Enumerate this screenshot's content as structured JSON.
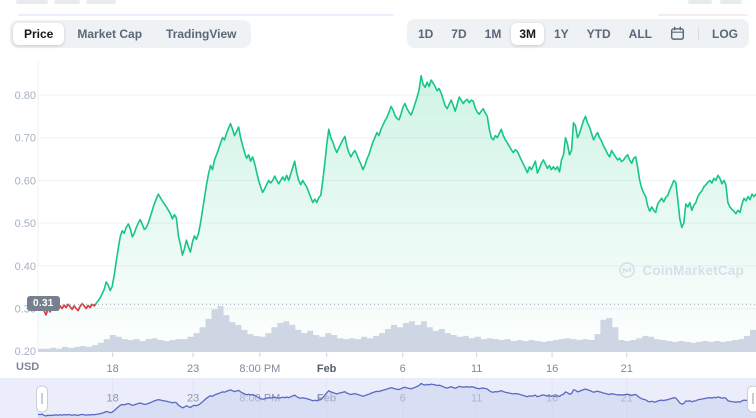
{
  "toolbar": {
    "chart_type_tabs": [
      {
        "label": "Price",
        "active": true
      },
      {
        "label": "Market Cap",
        "active": false
      },
      {
        "label": "TradingView",
        "active": false
      }
    ],
    "range_buttons": [
      {
        "label": "1D",
        "active": false
      },
      {
        "label": "7D",
        "active": false
      },
      {
        "label": "1M",
        "active": false
      },
      {
        "label": "3M",
        "active": true
      },
      {
        "label": "1Y",
        "active": false
      },
      {
        "label": "YTD",
        "active": false
      },
      {
        "label": "ALL",
        "active": false
      }
    ],
    "calendar_icon": "calendar-icon",
    "log_label": "LOG"
  },
  "chart_data": {
    "type": "line",
    "currency_label": "USD",
    "baseline_price": "0.31",
    "watermark": "CoinMarketCap",
    "legend_position": "none",
    "grid": true,
    "ylim": [
      0.175,
      0.88
    ],
    "y_ticks": [
      "0.80",
      "0.70",
      "0.60",
      "0.50",
      "0.40",
      "0.30",
      "0.20"
    ],
    "x_ticks": [
      {
        "label": "18",
        "t": 0.104,
        "bold": false
      },
      {
        "label": "23",
        "t": 0.216,
        "bold": false
      },
      {
        "label": "8:00 PM",
        "t": 0.309,
        "bold": false
      },
      {
        "label": "Feb",
        "t": 0.402,
        "bold": true
      },
      {
        "label": "6",
        "t": 0.508,
        "bold": false
      },
      {
        "label": "11",
        "t": 0.611,
        "bold": false
      },
      {
        "label": "16",
        "t": 0.716,
        "bold": false
      },
      {
        "label": "21",
        "t": 0.82,
        "bold": false
      }
    ],
    "colors": {
      "up": "#16c784",
      "down": "#ea3943",
      "volume": "#ccd4e2",
      "grid": "#f0f2f6",
      "baseline_dots": "#9aa2af",
      "y_label": "#a7b1c2",
      "x_label": "#7f8a9c",
      "x_label_bold": "#57606d",
      "brush_bg": "#ebeefa",
      "brush_fill": "#c9d1ee",
      "brush_line": "#5a69c2",
      "brush_grid": "#dfe4f4",
      "brush_label": "#838da0"
    },
    "series": [
      {
        "name": "price",
        "values": [
          0.315,
          0.308,
          0.318,
          0.295,
          0.285,
          0.3,
          0.292,
          0.3,
          0.296,
          0.305,
          0.298,
          0.306,
          0.3,
          0.308,
          0.302,
          0.31,
          0.304,
          0.298,
          0.306,
          0.3,
          0.295,
          0.305,
          0.312,
          0.306,
          0.3,
          0.307,
          0.302,
          0.31,
          0.306,
          0.312,
          0.318,
          0.325,
          0.335,
          0.345,
          0.362,
          0.355,
          0.342,
          0.352,
          0.378,
          0.41,
          0.44,
          0.468,
          0.482,
          0.476,
          0.49,
          0.498,
          0.487,
          0.468,
          0.476,
          0.49,
          0.5,
          0.508,
          0.497,
          0.485,
          0.49,
          0.5,
          0.515,
          0.53,
          0.545,
          0.557,
          0.568,
          0.56,
          0.552,
          0.545,
          0.538,
          0.53,
          0.522,
          0.51,
          0.52,
          0.512,
          0.47,
          0.45,
          0.425,
          0.44,
          0.46,
          0.445,
          0.432,
          0.455,
          0.47,
          0.462,
          0.475,
          0.5,
          0.53,
          0.56,
          0.59,
          0.615,
          0.635,
          0.625,
          0.648,
          0.66,
          0.673,
          0.687,
          0.7,
          0.695,
          0.71,
          0.722,
          0.733,
          0.72,
          0.705,
          0.715,
          0.725,
          0.7,
          0.682,
          0.665,
          0.652,
          0.66,
          0.645,
          0.655,
          0.64,
          0.62,
          0.6,
          0.585,
          0.572,
          0.58,
          0.59,
          0.6,
          0.594,
          0.6,
          0.61,
          0.6,
          0.592,
          0.6,
          0.608,
          0.6,
          0.612,
          0.6,
          0.615,
          0.63,
          0.645,
          0.618,
          0.6,
          0.59,
          0.6,
          0.592,
          0.585,
          0.572,
          0.56,
          0.548,
          0.556,
          0.548,
          0.56,
          0.565,
          0.6,
          0.64,
          0.685,
          0.72,
          0.7,
          0.69,
          0.676,
          0.665,
          0.676,
          0.685,
          0.695,
          0.703,
          0.68,
          0.665,
          0.655,
          0.664,
          0.67,
          0.66,
          0.648,
          0.638,
          0.625,
          0.635,
          0.65,
          0.66,
          0.675,
          0.69,
          0.7,
          0.712,
          0.705,
          0.72,
          0.73,
          0.74,
          0.748,
          0.76,
          0.773,
          0.765,
          0.752,
          0.745,
          0.742,
          0.755,
          0.772,
          0.78,
          0.768,
          0.76,
          0.753,
          0.765,
          0.78,
          0.795,
          0.812,
          0.845,
          0.825,
          0.818,
          0.83,
          0.82,
          0.835,
          0.828,
          0.82,
          0.81,
          0.815,
          0.805,
          0.79,
          0.775,
          0.768,
          0.778,
          0.788,
          0.776,
          0.762,
          0.778,
          0.795,
          0.788,
          0.78,
          0.786,
          0.79,
          0.782,
          0.788,
          0.786,
          0.77,
          0.76,
          0.755,
          0.762,
          0.768,
          0.758,
          0.75,
          0.72,
          0.7,
          0.695,
          0.705,
          0.7,
          0.71,
          0.72,
          0.705,
          0.695,
          0.688,
          0.68,
          0.672,
          0.665,
          0.672,
          0.668,
          0.658,
          0.648,
          0.638,
          0.628,
          0.618,
          0.632,
          0.625,
          0.635,
          0.645,
          0.617,
          0.628,
          0.64,
          0.648,
          0.638,
          0.628,
          0.635,
          0.625,
          0.632,
          0.625,
          0.632,
          0.62,
          0.648,
          0.66,
          0.7,
          0.685,
          0.66,
          0.67,
          0.735,
          0.728,
          0.7,
          0.71,
          0.725,
          0.74,
          0.75,
          0.735,
          0.725,
          0.71,
          0.695,
          0.705,
          0.712,
          0.7,
          0.692,
          0.68,
          0.672,
          0.662,
          0.655,
          0.67,
          0.662,
          0.655,
          0.648,
          0.652,
          0.644,
          0.648,
          0.655,
          0.66,
          0.648,
          0.64,
          0.652,
          0.655,
          0.63,
          0.6,
          0.582,
          0.57,
          0.562,
          0.54,
          0.528,
          0.538,
          0.53,
          0.525,
          0.545,
          0.552,
          0.558,
          0.55,
          0.56,
          0.565,
          0.578,
          0.588,
          0.6,
          0.595,
          0.555,
          0.51,
          0.49,
          0.5,
          0.545,
          0.538,
          0.548,
          0.53,
          0.542,
          0.548,
          0.562,
          0.57,
          0.575,
          0.585,
          0.59,
          0.596,
          0.6,
          0.594,
          0.605,
          0.6,
          0.612,
          0.605,
          0.592,
          0.6,
          0.59,
          0.548,
          0.538,
          0.532,
          0.528,
          0.522,
          0.53,
          0.525,
          0.545,
          0.558,
          0.552,
          0.562,
          0.555,
          0.568,
          0.562,
          0.568
        ]
      },
      {
        "name": "volume_relative",
        "values": [
          0.07,
          0.07,
          0.09,
          0.07,
          0.11,
          0.09,
          0.11,
          0.13,
          0.11,
          0.15,
          0.2,
          0.28,
          0.37,
          0.33,
          0.28,
          0.26,
          0.28,
          0.24,
          0.28,
          0.3,
          0.26,
          0.24,
          0.26,
          0.28,
          0.28,
          0.33,
          0.41,
          0.54,
          0.72,
          0.93,
          1.0,
          0.8,
          0.65,
          0.59,
          0.48,
          0.39,
          0.35,
          0.33,
          0.41,
          0.54,
          0.63,
          0.67,
          0.59,
          0.48,
          0.41,
          0.46,
          0.37,
          0.33,
          0.41,
          0.37,
          0.3,
          0.28,
          0.3,
          0.28,
          0.33,
          0.3,
          0.35,
          0.41,
          0.5,
          0.59,
          0.54,
          0.63,
          0.67,
          0.59,
          0.67,
          0.54,
          0.46,
          0.5,
          0.41,
          0.37,
          0.33,
          0.35,
          0.3,
          0.33,
          0.28,
          0.3,
          0.28,
          0.26,
          0.28,
          0.24,
          0.26,
          0.24,
          0.26,
          0.24,
          0.22,
          0.24,
          0.26,
          0.28,
          0.3,
          0.28,
          0.26,
          0.28,
          0.26,
          0.39,
          0.7,
          0.74,
          0.54,
          0.26,
          0.24,
          0.26,
          0.3,
          0.35,
          0.33,
          0.28,
          0.26,
          0.24,
          0.22,
          0.24,
          0.22,
          0.2,
          0.22,
          0.24,
          0.22,
          0.24,
          0.22,
          0.24,
          0.26,
          0.28,
          0.35,
          0.48
        ]
      }
    ]
  },
  "brush": {
    "left_handle": "drag-handle",
    "right_handle": "drag-handle"
  }
}
